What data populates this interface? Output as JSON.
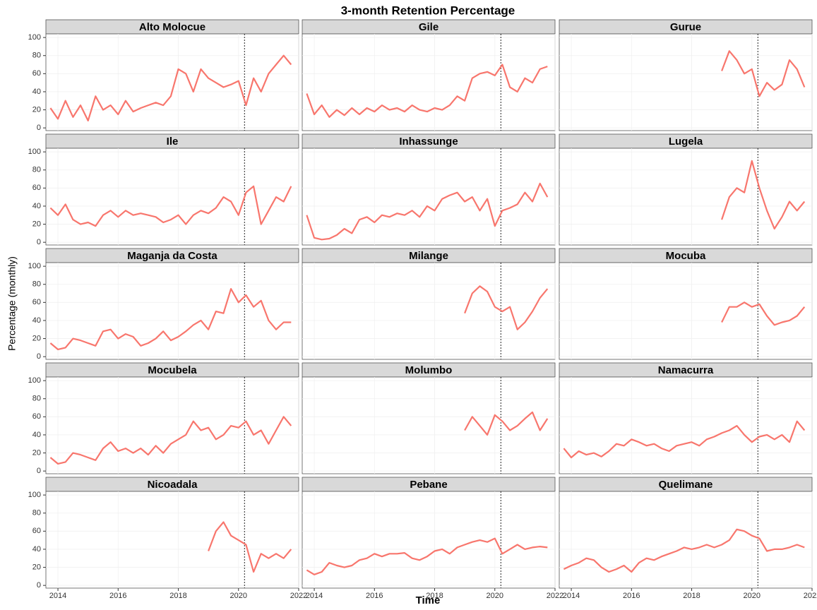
{
  "title": "3-month Retention Percentage",
  "x_label": "Time",
  "y_label": "Percentage (monthly)",
  "xlim": [
    2013.6,
    2022
  ],
  "xticks": [
    2014,
    2016,
    2018,
    2020,
    2022
  ],
  "ylim": [
    -3,
    104
  ],
  "yticks": [
    0,
    20,
    40,
    60,
    80,
    100
  ],
  "vline": 2020.2,
  "color": "#F8766D",
  "chart_data": [
    {
      "type": "line",
      "title": "Alto Molocue",
      "x": [
        2013.75,
        2014,
        2014.25,
        2014.5,
        2014.75,
        2015,
        2015.25,
        2015.5,
        2015.75,
        2016,
        2016.25,
        2016.5,
        2016.75,
        2017,
        2017.25,
        2017.5,
        2017.75,
        2018,
        2018.25,
        2018.5,
        2018.75,
        2019,
        2019.25,
        2019.5,
        2019.75,
        2020,
        2020.25,
        2020.5,
        2020.75,
        2021,
        2021.25,
        2021.5,
        2021.75
      ],
      "values": [
        22,
        10,
        30,
        12,
        25,
        8,
        35,
        20,
        25,
        15,
        30,
        18,
        22,
        25,
        28,
        25,
        35,
        65,
        60,
        40,
        65,
        55,
        50,
        45,
        48,
        52,
        25,
        55,
        40,
        60,
        70,
        80,
        70
      ]
    },
    {
      "type": "line",
      "title": "Gile",
      "x": [
        2013.75,
        2014,
        2014.25,
        2014.5,
        2014.75,
        2015,
        2015.25,
        2015.5,
        2015.75,
        2016,
        2016.25,
        2016.5,
        2016.75,
        2017,
        2017.25,
        2017.5,
        2017.75,
        2018,
        2018.25,
        2018.5,
        2018.75,
        2019,
        2019.25,
        2019.5,
        2019.75,
        2020,
        2020.25,
        2020.5,
        2020.75,
        2021,
        2021.25,
        2021.5,
        2021.75
      ],
      "values": [
        38,
        15,
        25,
        12,
        20,
        14,
        22,
        15,
        22,
        18,
        25,
        20,
        22,
        18,
        25,
        20,
        18,
        22,
        20,
        25,
        35,
        30,
        55,
        60,
        62,
        58,
        70,
        45,
        40,
        55,
        50,
        65,
        68
      ]
    },
    {
      "type": "line",
      "title": "Gurue",
      "x": [
        2019,
        2019.25,
        2019.5,
        2019.75,
        2020,
        2020.25,
        2020.5,
        2020.75,
        2021,
        2021.25,
        2021.5,
        2021.75
      ],
      "values": [
        63,
        85,
        75,
        60,
        65,
        35,
        50,
        42,
        48,
        75,
        65,
        45
      ]
    },
    {
      "type": "line",
      "title": "Ile",
      "x": [
        2013.75,
        2014,
        2014.25,
        2014.5,
        2014.75,
        2015,
        2015.25,
        2015.5,
        2015.75,
        2016,
        2016.25,
        2016.5,
        2016.75,
        2017,
        2017.25,
        2017.5,
        2017.75,
        2018,
        2018.25,
        2018.5,
        2018.75,
        2019,
        2019.25,
        2019.5,
        2019.75,
        2020,
        2020.25,
        2020.5,
        2020.75,
        2021,
        2021.25,
        2021.5,
        2021.75
      ],
      "values": [
        38,
        30,
        42,
        25,
        20,
        22,
        18,
        30,
        35,
        28,
        35,
        30,
        32,
        30,
        28,
        22,
        25,
        30,
        20,
        30,
        35,
        32,
        38,
        50,
        45,
        30,
        55,
        62,
        20,
        35,
        50,
        45,
        62
      ]
    },
    {
      "type": "line",
      "title": "Inhassunge",
      "x": [
        2013.75,
        2014,
        2014.25,
        2014.5,
        2014.75,
        2015,
        2015.25,
        2015.5,
        2015.75,
        2016,
        2016.25,
        2016.5,
        2016.75,
        2017,
        2017.25,
        2017.5,
        2017.75,
        2018,
        2018.25,
        2018.5,
        2018.75,
        2019,
        2019.25,
        2019.5,
        2019.75,
        2020,
        2020.25,
        2020.5,
        2020.75,
        2021,
        2021.25,
        2021.5,
        2021.75
      ],
      "values": [
        30,
        5,
        3,
        4,
        8,
        15,
        10,
        25,
        28,
        22,
        30,
        28,
        32,
        30,
        35,
        28,
        40,
        35,
        48,
        52,
        55,
        45,
        50,
        35,
        48,
        18,
        35,
        38,
        42,
        55,
        45,
        65,
        50
      ]
    },
    {
      "type": "line",
      "title": "Lugela",
      "x": [
        2019,
        2019.25,
        2019.5,
        2019.75,
        2020,
        2020.25,
        2020.5,
        2020.75,
        2021,
        2021.25,
        2021.5,
        2021.75
      ],
      "values": [
        25,
        50,
        60,
        55,
        90,
        60,
        35,
        15,
        28,
        45,
        35,
        45
      ]
    },
    {
      "type": "line",
      "title": "Maganja da Costa",
      "x": [
        2013.75,
        2014,
        2014.25,
        2014.5,
        2014.75,
        2015,
        2015.25,
        2015.5,
        2015.75,
        2016,
        2016.25,
        2016.5,
        2016.75,
        2017,
        2017.25,
        2017.5,
        2017.75,
        2018,
        2018.25,
        2018.5,
        2018.75,
        2019,
        2019.25,
        2019.5,
        2019.75,
        2020,
        2020.25,
        2020.5,
        2020.75,
        2021,
        2021.25,
        2021.5,
        2021.75
      ],
      "values": [
        15,
        8,
        10,
        20,
        18,
        15,
        12,
        28,
        30,
        20,
        25,
        22,
        12,
        15,
        20,
        28,
        18,
        22,
        28,
        35,
        40,
        30,
        50,
        48,
        75,
        60,
        68,
        55,
        62,
        40,
        30,
        38,
        38
      ]
    },
    {
      "type": "line",
      "title": "Milange",
      "x": [
        2019,
        2019.25,
        2019.5,
        2019.75,
        2020,
        2020.25,
        2020.5,
        2020.75,
        2021,
        2021.25,
        2021.5,
        2021.75
      ],
      "values": [
        48,
        70,
        78,
        72,
        55,
        50,
        55,
        30,
        38,
        50,
        65,
        75
      ]
    },
    {
      "type": "line",
      "title": "Mocuba",
      "x": [
        2019,
        2019.25,
        2019.5,
        2019.75,
        2020,
        2020.25,
        2020.5,
        2020.75,
        2021,
        2021.25,
        2021.5,
        2021.75
      ],
      "values": [
        38,
        55,
        55,
        60,
        55,
        58,
        45,
        35,
        38,
        40,
        45,
        55
      ]
    },
    {
      "type": "line",
      "title": "Mocubela",
      "x": [
        2013.75,
        2014,
        2014.25,
        2014.5,
        2014.75,
        2015,
        2015.25,
        2015.5,
        2015.75,
        2016,
        2016.25,
        2016.5,
        2016.75,
        2017,
        2017.25,
        2017.5,
        2017.75,
        2018,
        2018.25,
        2018.5,
        2018.75,
        2019,
        2019.25,
        2019.5,
        2019.75,
        2020,
        2020.25,
        2020.5,
        2020.75,
        2021,
        2021.25,
        2021.5,
        2021.75
      ],
      "values": [
        15,
        8,
        10,
        20,
        18,
        15,
        12,
        25,
        32,
        22,
        25,
        20,
        25,
        18,
        28,
        20,
        30,
        35,
        40,
        55,
        45,
        48,
        35,
        40,
        50,
        48,
        55,
        40,
        45,
        30,
        45,
        60,
        50
      ]
    },
    {
      "type": "line",
      "title": "Molumbo",
      "x": [
        2019,
        2019.25,
        2019.5,
        2019.75,
        2020,
        2020.25,
        2020.5,
        2020.75,
        2021,
        2021.25,
        2021.5,
        2021.75
      ],
      "values": [
        45,
        60,
        50,
        40,
        62,
        55,
        45,
        50,
        58,
        65,
        45,
        58
      ]
    },
    {
      "type": "line",
      "title": "Namacurra",
      "x": [
        2013.75,
        2014,
        2014.25,
        2014.5,
        2014.75,
        2015,
        2015.25,
        2015.5,
        2015.75,
        2016,
        2016.25,
        2016.5,
        2016.75,
        2017,
        2017.25,
        2017.5,
        2017.75,
        2018,
        2018.25,
        2018.5,
        2018.75,
        2019,
        2019.25,
        2019.5,
        2019.75,
        2020,
        2020.25,
        2020.5,
        2020.75,
        2021,
        2021.25,
        2021.5,
        2021.75
      ],
      "values": [
        25,
        15,
        22,
        18,
        20,
        16,
        22,
        30,
        28,
        35,
        32,
        28,
        30,
        25,
        22,
        28,
        30,
        32,
        28,
        35,
        38,
        42,
        45,
        50,
        40,
        32,
        38,
        40,
        35,
        40,
        32,
        55,
        45
      ]
    },
    {
      "type": "line",
      "title": "Nicoadala",
      "x": [
        2019,
        2019.25,
        2019.5,
        2019.75,
        2020,
        2020.25,
        2020.5,
        2020.75,
        2021,
        2021.25,
        2021.5,
        2021.75
      ],
      "values": [
        38,
        60,
        70,
        55,
        50,
        45,
        15,
        35,
        30,
        35,
        30,
        40
      ]
    },
    {
      "type": "line",
      "title": "Pebane",
      "x": [
        2013.75,
        2014,
        2014.25,
        2014.5,
        2014.75,
        2015,
        2015.25,
        2015.5,
        2015.75,
        2016,
        2016.25,
        2016.5,
        2016.75,
        2017,
        2017.25,
        2017.5,
        2017.75,
        2018,
        2018.25,
        2018.5,
        2018.75,
        2019,
        2019.25,
        2019.5,
        2019.75,
        2020,
        2020.25,
        2020.5,
        2020.75,
        2021,
        2021.25,
        2021.5,
        2021.75
      ],
      "values": [
        17,
        12,
        15,
        25,
        22,
        20,
        22,
        28,
        30,
        35,
        32,
        35,
        35,
        36,
        30,
        28,
        32,
        38,
        40,
        35,
        42,
        45,
        48,
        50,
        48,
        52,
        35,
        40,
        45,
        40,
        42,
        43,
        42
      ]
    },
    {
      "type": "line",
      "title": "Quelimane",
      "x": [
        2013.75,
        2014,
        2014.25,
        2014.5,
        2014.75,
        2015,
        2015.25,
        2015.5,
        2015.75,
        2016,
        2016.25,
        2016.5,
        2016.75,
        2017,
        2017.25,
        2017.5,
        2017.75,
        2018,
        2018.25,
        2018.5,
        2018.75,
        2019,
        2019.25,
        2019.5,
        2019.75,
        2020,
        2020.25,
        2020.5,
        2020.75,
        2021,
        2021.25,
        2021.5,
        2021.75
      ],
      "values": [
        18,
        22,
        25,
        30,
        28,
        20,
        15,
        18,
        22,
        15,
        25,
        30,
        28,
        32,
        35,
        38,
        42,
        40,
        42,
        45,
        42,
        45,
        50,
        62,
        60,
        55,
        52,
        38,
        40,
        40,
        42,
        45,
        42
      ]
    }
  ]
}
